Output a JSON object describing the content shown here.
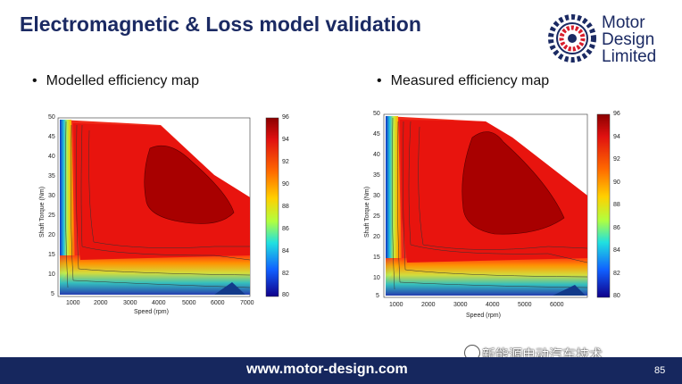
{
  "slide": {
    "title": "Electromagnetic & Loss model validation",
    "page_number": "85",
    "footer_url": "www.motor-design.com",
    "watermark": "新能源电动汽车技术"
  },
  "logo": {
    "line1": "Motor",
    "line2": "Design",
    "line3": "Limited"
  },
  "bullets": {
    "left": "Modelled efficiency map",
    "right": "Measured efficiency map"
  },
  "plots": {
    "left": {
      "ylabel": "Shaft Torque (Nm)",
      "xlabel": "Speed (rpm)",
      "yticks": [
        "50",
        "45",
        "40",
        "35",
        "30",
        "25",
        "20",
        "15",
        "10",
        "5"
      ],
      "xticks": [
        "1000",
        "2000",
        "3000",
        "4000",
        "5000",
        "6000",
        "7000"
      ],
      "cbar": [
        "96",
        "94",
        "92",
        "90",
        "88",
        "86",
        "84",
        "82",
        "80"
      ]
    },
    "right": {
      "ylabel": "Shaft Torque (Nm)",
      "xlabel": "Speed (rpm)",
      "yticks": [
        "50",
        "45",
        "40",
        "35",
        "30",
        "25",
        "20",
        "15",
        "10",
        "5"
      ],
      "xticks": [
        "1000",
        "2000",
        "3000",
        "4000",
        "5000",
        "6000"
      ],
      "cbar": [
        "96",
        "94",
        "92",
        "90",
        "88",
        "86",
        "84",
        "82",
        "80"
      ]
    }
  },
  "colors": {
    "navy": "#16275e",
    "title": "#1b2a63",
    "logo_red": "#d81e2c"
  }
}
